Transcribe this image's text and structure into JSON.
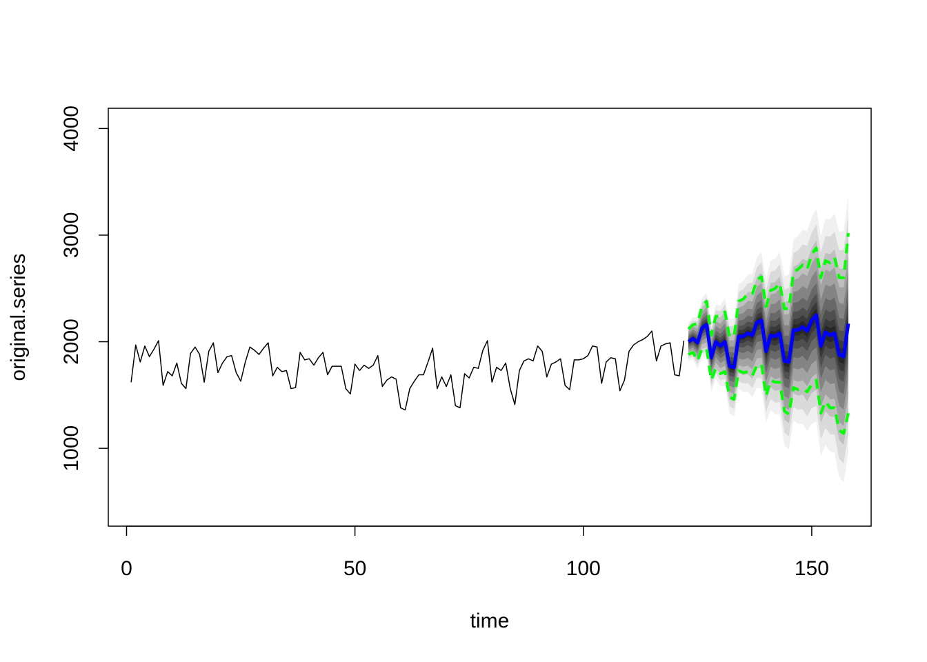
{
  "chart_data": {
    "type": "line",
    "title": "",
    "xlabel": "time",
    "ylabel": "original.series",
    "xlim": [
      -4,
      163
    ],
    "ylim": [
      270,
      4190
    ],
    "x_ticks": [
      0,
      50,
      100,
      150
    ],
    "y_ticks": [
      1000,
      2000,
      3000,
      4000
    ],
    "x_tick_labels": [
      "0",
      "50",
      "100",
      "150"
    ],
    "y_tick_labels": [
      "1000",
      "2000",
      "3000",
      "4000"
    ],
    "grid": false,
    "legend": "none",
    "series": [
      {
        "role": "observed",
        "color": "#000000",
        "x_start": 1,
        "values": [
          1620,
          1970,
          1810,
          1960,
          1860,
          1930,
          2010,
          1590,
          1720,
          1680,
          1800,
          1610,
          1560,
          1890,
          1950,
          1880,
          1620,
          1910,
          1990,
          1710,
          1800,
          1860,
          1870,
          1710,
          1630,
          1810,
          1950,
          1920,
          1880,
          1940,
          1990,
          1680,
          1760,
          1720,
          1730,
          1560,
          1570,
          1900,
          1830,
          1840,
          1780,
          1850,
          1900,
          1690,
          1770,
          1770,
          1770,
          1560,
          1510,
          1790,
          1730,
          1780,
          1750,
          1780,
          1870,
          1580,
          1640,
          1670,
          1650,
          1380,
          1360,
          1560,
          1630,
          1690,
          1690,
          1810,
          1940,
          1560,
          1670,
          1580,
          1690,
          1400,
          1380,
          1700,
          1660,
          1760,
          1750,
          1920,
          2010,
          1620,
          1760,
          1730,
          1800,
          1560,
          1410,
          1730,
          1820,
          1840,
          1820,
          1960,
          1910,
          1670,
          1790,
          1810,
          1840,
          1590,
          1550,
          1830,
          1830,
          1840,
          1870,
          1960,
          1950,
          1610,
          1810,
          1850,
          1840,
          1540,
          1640,
          1910,
          1970,
          2000,
          2020,
          2050,
          2100,
          1820,
          1960,
          1980,
          1990,
          1690,
          1680,
          2010
        ]
      },
      {
        "role": "forecast-mean",
        "color": "#0000ff",
        "x_start": 123,
        "values": [
          2000,
          2030,
          1990,
          2130,
          2160,
          1850,
          2000,
          1960,
          2000,
          1770,
          1760,
          2050,
          2050,
          2080,
          2060,
          2180,
          2200,
          1910,
          2060,
          2050,
          2080,
          1820,
          1810,
          2110,
          2110,
          2140,
          2100,
          2200,
          2250,
          1960,
          2090,
          2060,
          2080,
          1880,
          1860,
          2170
        ]
      },
      {
        "role": "upper-bound",
        "color": "#00ff00",
        "x_start": 123,
        "values": [
          2120,
          2160,
          2170,
          2340,
          2380,
          2060,
          2240,
          2240,
          2280,
          2050,
          2050,
          2380,
          2400,
          2450,
          2450,
          2580,
          2610,
          2330,
          2480,
          2500,
          2550,
          2310,
          2310,
          2650,
          2680,
          2720,
          2680,
          2820,
          2880,
          2600,
          2760,
          2740,
          2790,
          2600,
          2600,
          3020
        ]
      },
      {
        "role": "lower-bound",
        "color": "#00ff00",
        "x_start": 123,
        "values": [
          1880,
          1900,
          1820,
          1940,
          1930,
          1640,
          1750,
          1700,
          1720,
          1480,
          1460,
          1730,
          1710,
          1720,
          1680,
          1780,
          1790,
          1490,
          1640,
          1620,
          1620,
          1350,
          1320,
          1570,
          1550,
          1560,
          1530,
          1600,
          1640,
          1330,
          1440,
          1380,
          1380,
          1170,
          1140,
          1330
        ]
      }
    ],
    "fan": {
      "color": "#000000",
      "x_start": 123,
      "center": [
        2000,
        2030,
        1990,
        2130,
        2160,
        1850,
        2000,
        1960,
        2000,
        1770,
        1760,
        2050,
        2050,
        2080,
        2060,
        2180,
        2200,
        1910,
        2060,
        2050,
        2080,
        1820,
        1810,
        2110,
        2110,
        2140,
        2100,
        2200,
        2250,
        1960,
        2090,
        2060,
        2080,
        1880,
        1860,
        2170
      ],
      "spread": [
        180,
        200,
        240,
        280,
        300,
        320,
        350,
        380,
        410,
        440,
        460,
        490,
        520,
        550,
        580,
        610,
        640,
        670,
        700,
        730,
        760,
        790,
        820,
        850,
        880,
        910,
        940,
        970,
        1000,
        1030,
        1060,
        1090,
        1120,
        1150,
        1180,
        1210
      ]
    }
  }
}
